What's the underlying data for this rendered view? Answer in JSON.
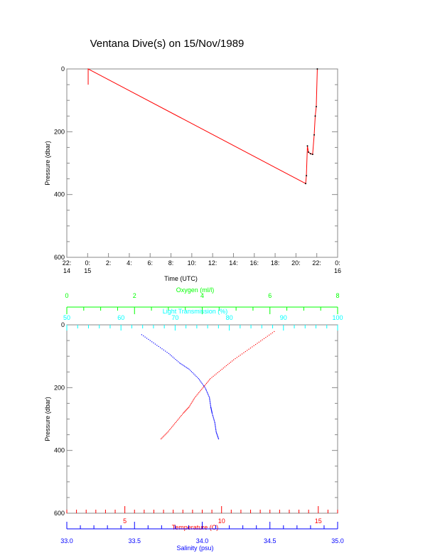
{
  "title": "Ventana Dive(s) on 15/Nov/1989",
  "chart_data": [
    {
      "type": "line",
      "xlabel": "Time (UTC)",
      "ylabel": "Pressure (dbar)",
      "xlim": [
        "14/Nov 22:00",
        "16/Nov 00:00"
      ],
      "ylim": [
        600,
        0
      ],
      "xticks": [
        [
          "22:",
          "14"
        ],
        [
          "0:",
          "15"
        ],
        [
          "2:",
          ""
        ],
        [
          "4:",
          ""
        ],
        [
          "6:",
          ""
        ],
        [
          "8:",
          ""
        ],
        [
          "10:",
          ""
        ],
        [
          "12:",
          ""
        ],
        [
          "14:",
          ""
        ],
        [
          "16:",
          ""
        ],
        [
          "18:",
          ""
        ],
        [
          "20:",
          ""
        ],
        [
          "22:",
          ""
        ],
        [
          "0:",
          "16"
        ]
      ],
      "yticks": [
        "0",
        "200",
        "400",
        "600"
      ],
      "series": [
        {
          "color": "#ff0000",
          "x_hours_utc": [
            0.05,
            0.05,
            0.05,
            20.93,
            21.0,
            21.1,
            21.2,
            21.4,
            21.6,
            21.75,
            21.85,
            21.95,
            22.05
          ],
          "y": [
            0,
            50,
            0,
            365,
            340,
            245,
            265,
            270,
            272,
            210,
            150,
            120,
            0
          ]
        }
      ]
    },
    {
      "type": "scatter",
      "ylabel": "Pressure (dbar)",
      "ylim": [
        600,
        0
      ],
      "yticks": [
        "0",
        "200",
        "400",
        "600"
      ],
      "axes": [
        {
          "label": "Oxygen (ml/l)",
          "color": "#00ff00",
          "range": [
            0,
            8
          ],
          "ticks": [
            "0",
            "2",
            "4",
            "6",
            "8"
          ],
          "position": "top"
        },
        {
          "label": "Light Transmission (%)",
          "color": "#00ffff",
          "range": [
            50,
            100
          ],
          "ticks": [
            "50",
            "60",
            "70",
            "80",
            "90",
            "100"
          ],
          "position": "top"
        },
        {
          "label": "Temperature (C)",
          "color": "#ff0000",
          "range": [
            2,
            16
          ],
          "ticks": [
            "5",
            "10",
            "15"
          ],
          "position": "bottom"
        },
        {
          "label": "Salinity (psu)",
          "color": "#0000ff",
          "range": [
            33.0,
            35.0
          ],
          "ticks": [
            "33.0",
            "33.5",
            "34.0",
            "34.5",
            "35.0"
          ],
          "position": "bottom"
        }
      ],
      "series": [
        {
          "name": "Temperature (C)",
          "color": "#ff0000",
          "x": [
            12.7,
            12.0,
            11.3,
            10.6,
            10.0,
            9.4,
            9.0,
            8.6,
            8.3,
            8.0,
            7.6,
            7.2,
            6.8
          ],
          "y": [
            20,
            50,
            80,
            110,
            140,
            170,
            200,
            230,
            260,
            280,
            310,
            340,
            365
          ]
        },
        {
          "name": "Salinity (psu)",
          "color": "#0000ff",
          "x": [
            33.55,
            33.65,
            33.75,
            33.83,
            33.9,
            33.97,
            34.02,
            34.05,
            34.06,
            34.07,
            34.09,
            34.1,
            34.12
          ],
          "y": [
            30,
            60,
            90,
            120,
            140,
            170,
            200,
            230,
            260,
            280,
            310,
            340,
            365
          ]
        }
      ]
    }
  ]
}
